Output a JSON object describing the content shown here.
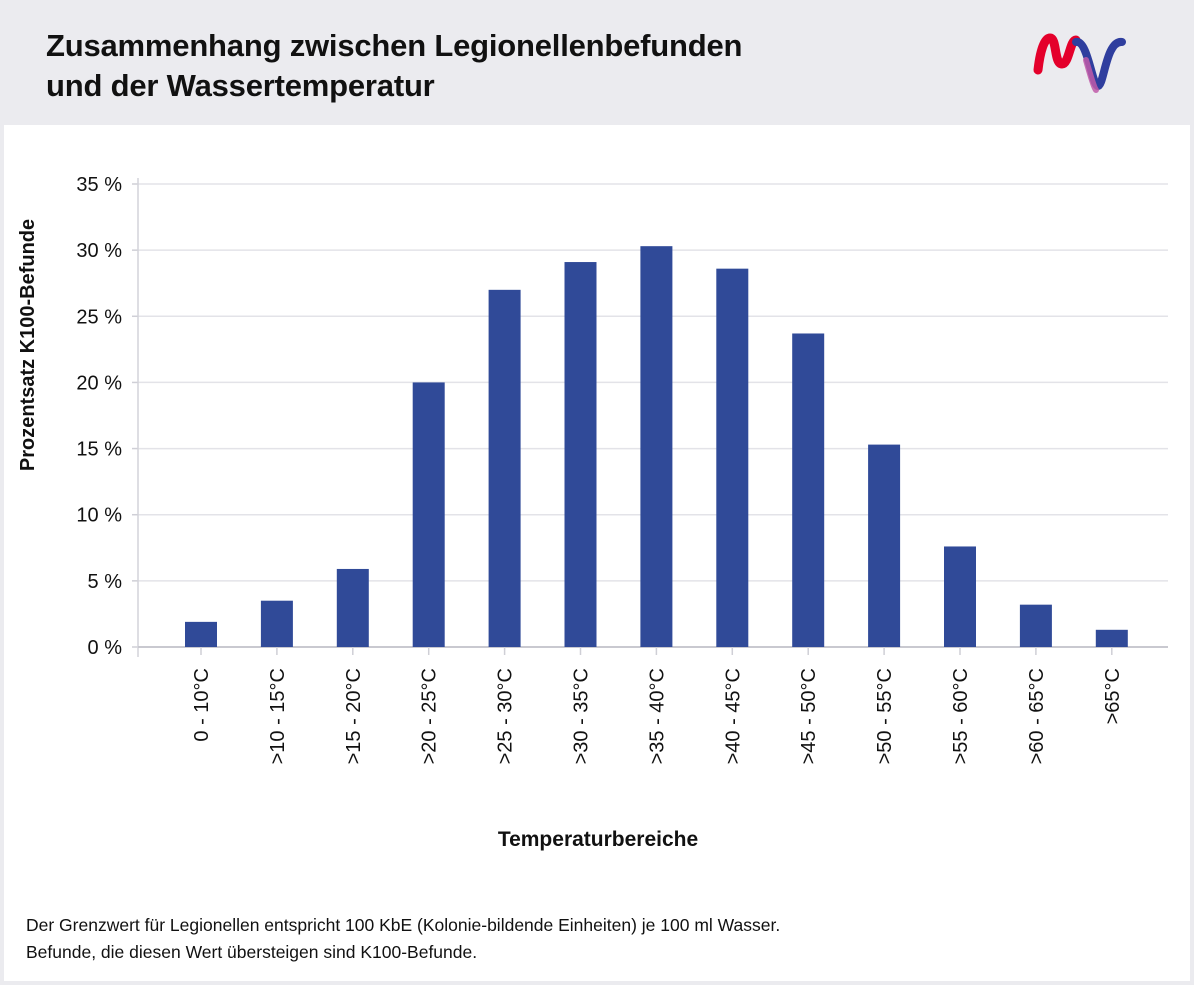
{
  "header": {
    "title_line1": "Zusammenhang zwischen Legionellenbefunden",
    "title_line2": "und der Wassertemperatur",
    "logo_icon": "mvv-logo-icon"
  },
  "colors": {
    "bar": "#304a98",
    "header_bg": "#ebebef",
    "grid": "#e3e3e8",
    "logo_red": "#e4002b",
    "logo_blue": "#2f3e9e",
    "logo_pink": "#c05aa8"
  },
  "chart_data": {
    "type": "bar",
    "title": "",
    "xlabel": "Temperaturbereiche",
    "ylabel": "Prozentsatz K100-Befunde",
    "ylim": [
      0,
      35
    ],
    "yticks": [
      "0 %",
      "5 %",
      "10 %",
      "15 %",
      "20 %",
      "25 %",
      "30 %",
      "35 %"
    ],
    "categories": [
      "0 - 10°C",
      ">10 - 15°C",
      ">15 - 20°C",
      ">20 - 25°C",
      ">25 - 30°C",
      ">30 - 35°C",
      ">35 - 40°C",
      ">40 - 45°C",
      ">45 - 50°C",
      ">50 - 55°C",
      ">55 - 60°C",
      ">60 - 65°C",
      ">65°C"
    ],
    "values": [
      1.9,
      3.5,
      5.9,
      20.0,
      27.0,
      29.1,
      30.3,
      28.6,
      23.7,
      15.3,
      7.6,
      3.2,
      1.3
    ],
    "grid": "horizontal",
    "legend": "none"
  },
  "footnote": {
    "line1": "Der Grenzwert für Legionellen entspricht 100 KbE (Kolonie-bildende Einheiten) je 100 ml Wasser.",
    "line2": "Befunde, die diesen Wert übersteigen sind K100-Befunde."
  }
}
